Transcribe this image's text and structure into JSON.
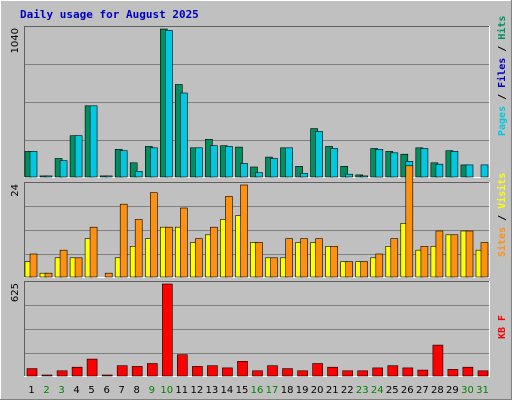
{
  "chart_data": {
    "type": "bar",
    "title": "Daily usage for August 2025",
    "categories": [
      "1",
      "2",
      "3",
      "4",
      "5",
      "6",
      "7",
      "8",
      "9",
      "10",
      "11",
      "12",
      "13",
      "14",
      "15",
      "16",
      "17",
      "18",
      "19",
      "20",
      "21",
      "22",
      "23",
      "24",
      "25",
      "26",
      "27",
      "28",
      "29",
      "30",
      "31"
    ],
    "weekend_days": [
      2,
      3,
      9,
      10,
      16,
      17,
      23,
      24,
      30,
      31
    ],
    "colors": {
      "background": "#c0c0c0",
      "hits": "#008f60",
      "files": "#00c8e0",
      "pages": "#00c8e0",
      "visits": "#ffff00",
      "sites": "#ff9010",
      "kbf": "#ff0000",
      "title": "#0000c0",
      "weekday_label": "#000000",
      "weekend_label": "#008000"
    },
    "panels": [
      {
        "ymax_label": "1040",
        "ymax": 1040,
        "legend": [
          {
            "text": "Pages",
            "color": "#00c8e0"
          },
          {
            "text": " / ",
            "color": "#000000"
          },
          {
            "text": "Files",
            "color": "#0000c0"
          },
          {
            "text": " / ",
            "color": "#000000"
          },
          {
            "text": "Hits",
            "color": "#008f60"
          }
        ],
        "series": [
          {
            "name": "Hits",
            "color": "#008f60",
            "values": [
              180,
              8,
              130,
              290,
              500,
              8,
              195,
              100,
              215,
              1040,
              650,
              205,
              265,
              220,
              210,
              70,
              140,
              205,
              75,
              340,
              215,
              75,
              15,
              200,
              180,
              160,
              205,
              100,
              185,
              85,
              0
            ]
          },
          {
            "name": "Files",
            "color": "#00c8e0",
            "values": [
              180,
              8,
              115,
              290,
              500,
              8,
              185,
              40,
              205,
              1030,
              590,
              205,
              220,
              215,
              95,
              30,
              130,
              205,
              25,
              320,
              200,
              20,
              8,
              195,
              170,
              110,
              200,
              90,
              180,
              85,
              0
            ]
          },
          {
            "name": "Pages",
            "color": "#00c8e0",
            "values": [
              0,
              0,
              0,
              0,
              0,
              0,
              0,
              0,
              0,
              0,
              0,
              0,
              0,
              0,
              0,
              0,
              0,
              0,
              0,
              0,
              0,
              0,
              0,
              0,
              0,
              0,
              0,
              0,
              0,
              0,
              85
            ]
          }
        ]
      },
      {
        "ymax_label": "24",
        "ymax": 24,
        "legend": [
          {
            "text": "Sites",
            "color": "#ff9010"
          },
          {
            "text": " / ",
            "color": "#000000"
          },
          {
            "text": "Visits",
            "color": "#ffff00"
          }
        ],
        "series": [
          {
            "name": "Visits",
            "color": "#ffff00",
            "values": [
              4,
              1,
              5,
              5,
              10,
              0,
              5,
              8,
              10,
              13,
              13,
              9,
              11,
              15,
              16,
              9,
              5,
              5,
              9,
              9,
              8,
              4,
              4,
              5,
              8,
              14,
              7,
              8,
              11,
              12,
              7
            ]
          },
          {
            "name": "Sites",
            "color": "#ff9010",
            "values": [
              6,
              1,
              7,
              5,
              13,
              1,
              19,
              15,
              22,
              13,
              18,
              10,
              13,
              21,
              24,
              9,
              5,
              10,
              10,
              10,
              8,
              4,
              4,
              6,
              10,
              29,
              8,
              12,
              11,
              12,
              9
            ]
          }
        ]
      },
      {
        "ymax_label": "625",
        "ymax": 625,
        "legend": [
          {
            "text": "KB F",
            "color": "#ff0000"
          }
        ],
        "series": [
          {
            "name": "KB F",
            "color": "#ff0000",
            "values": [
              50,
              5,
              35,
              60,
              115,
              5,
              70,
              65,
              85,
              625,
              145,
              65,
              70,
              55,
              100,
              35,
              70,
              50,
              35,
              85,
              60,
              35,
              35,
              55,
              70,
              55,
              40,
              210,
              45,
              60,
              35
            ]
          }
        ]
      }
    ]
  }
}
